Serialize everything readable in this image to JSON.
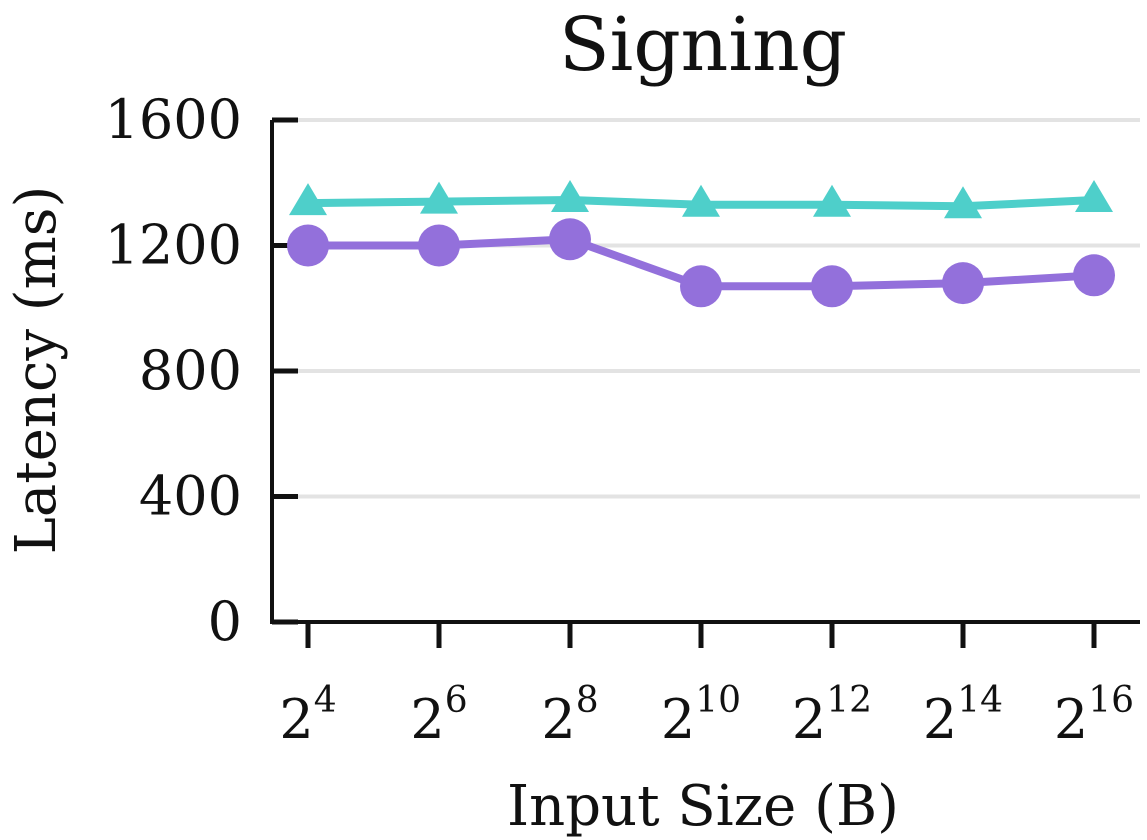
{
  "chart_data": {
    "type": "line",
    "title": "Signing",
    "xlabel": "Input Size (B)",
    "ylabel": "Latency (ms)",
    "ylim": [
      0,
      1600
    ],
    "yticks": [
      0,
      400,
      800,
      1200,
      1600
    ],
    "x_tick_labels": [
      {
        "base": "2",
        "exp": "4"
      },
      {
        "base": "2",
        "exp": "6"
      },
      {
        "base": "2",
        "exp": "8"
      },
      {
        "base": "2",
        "exp": "10"
      },
      {
        "base": "2",
        "exp": "12"
      },
      {
        "base": "2",
        "exp": "14"
      },
      {
        "base": "2",
        "exp": "16"
      }
    ],
    "x_exponents": [
      4,
      6,
      8,
      10,
      12,
      14,
      16
    ],
    "grid": "horizontal",
    "legend": "none",
    "series": [
      {
        "values": [
          1335,
          1340,
          1345,
          1330,
          1330,
          1325,
          1345
        ],
        "marker": "triangle",
        "color": "#4ecfca"
      },
      {
        "values": [
          1200,
          1200,
          1220,
          1070,
          1070,
          1080,
          1105
        ],
        "marker": "circle",
        "color": "#9370db"
      }
    ]
  }
}
